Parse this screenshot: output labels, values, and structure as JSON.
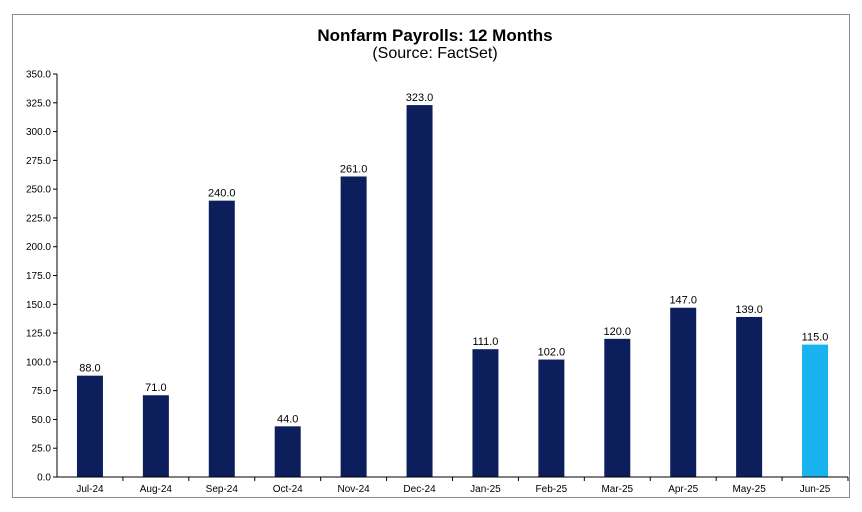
{
  "chart_data": {
    "type": "bar",
    "title": "Nonfarm Payrolls:  12 Months",
    "subtitle": "(Source:  FactSet)",
    "categories": [
      "Jul-24",
      "Aug-24",
      "Sep-24",
      "Oct-24",
      "Nov-24",
      "Dec-24",
      "Jan-25",
      "Feb-25",
      "Mar-25",
      "Apr-25",
      "May-25",
      "Jun-25"
    ],
    "values": [
      88.0,
      71.0,
      240.0,
      44.0,
      261.0,
      323.0,
      111.0,
      102.0,
      120.0,
      147.0,
      139.0,
      115.0
    ],
    "data_labels": [
      "88.0",
      "71.0",
      "240.0",
      "44.0",
      "261.0",
      "323.0",
      "111.0",
      "102.0",
      "120.0",
      "147.0",
      "139.0",
      "115.0"
    ],
    "ylim": [
      0,
      350
    ],
    "y_ticks": [
      "0.0",
      "25.0",
      "50.0",
      "75.0",
      "100.0",
      "125.0",
      "150.0",
      "175.0",
      "200.0",
      "225.0",
      "250.0",
      "275.0",
      "300.0",
      "325.0",
      "350.0"
    ],
    "grid": false,
    "legend": "none",
    "colors": {
      "bar": "#0c1f5c",
      "highlight": "#19b4f0"
    },
    "highlight_index": 11
  }
}
